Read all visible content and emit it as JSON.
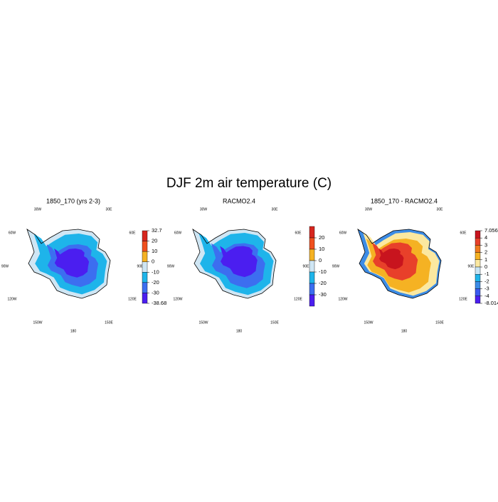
{
  "title": "DJF 2m air temperature (C)",
  "panels": [
    {
      "title": "1850_170 (yrs 2-3)",
      "lon_labels": [
        "30W",
        "30E",
        "60W",
        "60E",
        "90W",
        "90E",
        "120W",
        "120E",
        "150W",
        "150E",
        "180"
      ],
      "colorbar": {
        "ticks": [
          32.7,
          20,
          10,
          0,
          -10,
          -20,
          -30,
          -38.68
        ],
        "colors": [
          "#d7261e",
          "#f0501e",
          "#f5b223",
          "#cfe6f4",
          "#1eb4ea",
          "#3c6ef0",
          "#4b1ef0"
        ]
      }
    },
    {
      "title": "RACMO2.4",
      "lon_labels": [
        "30W",
        "30E",
        "60W",
        "60E",
        "90W",
        "90E",
        "120W",
        "120E",
        "150W",
        "150E",
        "180"
      ],
      "colorbar": {
        "ticks": [
          20,
          10,
          0,
          -10,
          -20,
          -30
        ],
        "colors": [
          "#d7261e",
          "#f0501e",
          "#f5b223",
          "#cfe6f4",
          "#1eb4ea",
          "#3c6ef0",
          "#4b1ef0"
        ]
      }
    },
    {
      "title": "1850_170 - RACMO2.4",
      "lon_labels": [
        "30W",
        "30E",
        "60W",
        "60E",
        "90W",
        "90E",
        "120W",
        "120E",
        "150W",
        "150E",
        "180"
      ],
      "colorbar": {
        "ticks": [
          7.056,
          4,
          3,
          2,
          1,
          0,
          -1,
          -2,
          -3,
          -4,
          -8.014
        ],
        "colors": [
          "#c8141e",
          "#e8402a",
          "#f07a1e",
          "#f5b223",
          "#fbe8a0",
          "#c8e4f4",
          "#1eb4ea",
          "#3c8ce6",
          "#3a5af0",
          "#4b1ef0"
        ]
      }
    }
  ]
}
